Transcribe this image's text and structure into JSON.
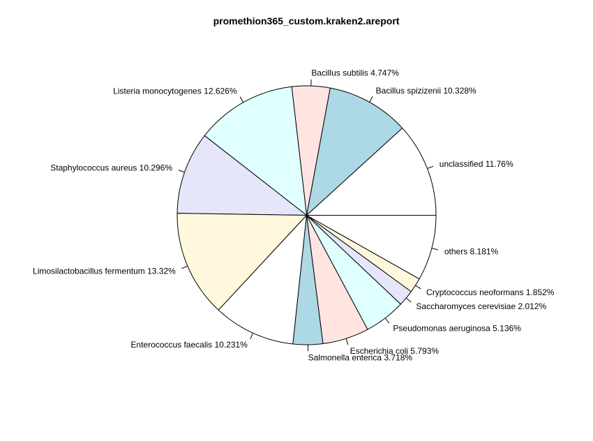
{
  "chart_data": {
    "type": "pie",
    "title": "promethion365_custom.kraken2.areport",
    "start_angle_deg": 0,
    "direction": "counterclockwise",
    "slices": [
      {
        "label": "unclassified 11.76%",
        "value": 11.76,
        "color": "#ffffff"
      },
      {
        "label": "Bacillus spizizenii 10.328%",
        "value": 10.328,
        "color": "#add8e6"
      },
      {
        "label": "Bacillus subtilis 4.747%",
        "value": 4.747,
        "color": "#ffe4e1"
      },
      {
        "label": "Listeria monocytogenes 12.626%",
        "value": 12.626,
        "color": "#e0ffff"
      },
      {
        "label": "Staphylococcus aureus 10.296%",
        "value": 10.296,
        "color": "#e6e6fa"
      },
      {
        "label": "Limosilactobacillus fermentum 13.32%",
        "value": 13.32,
        "color": "#fff8dc"
      },
      {
        "label": "Enterococcus faecalis 10.231%",
        "value": 10.231,
        "color": "#ffffff"
      },
      {
        "label": "Salmonella enterica 3.718%",
        "value": 3.718,
        "color": "#add8e6"
      },
      {
        "label": "Escherichia coli 5.793%",
        "value": 5.793,
        "color": "#ffe4e1"
      },
      {
        "label": "Pseudomonas aeruginosa 5.136%",
        "value": 5.136,
        "color": "#e0ffff"
      },
      {
        "label": "Saccharomyces cerevisiae 2.012%",
        "value": 2.012,
        "color": "#e6e6fa"
      },
      {
        "label": "Cryptococcus neoformans 1.852%",
        "value": 1.852,
        "color": "#fff8dc"
      },
      {
        "label": "others 8.181%",
        "value": 8.181,
        "color": "#ffffff"
      }
    ]
  }
}
